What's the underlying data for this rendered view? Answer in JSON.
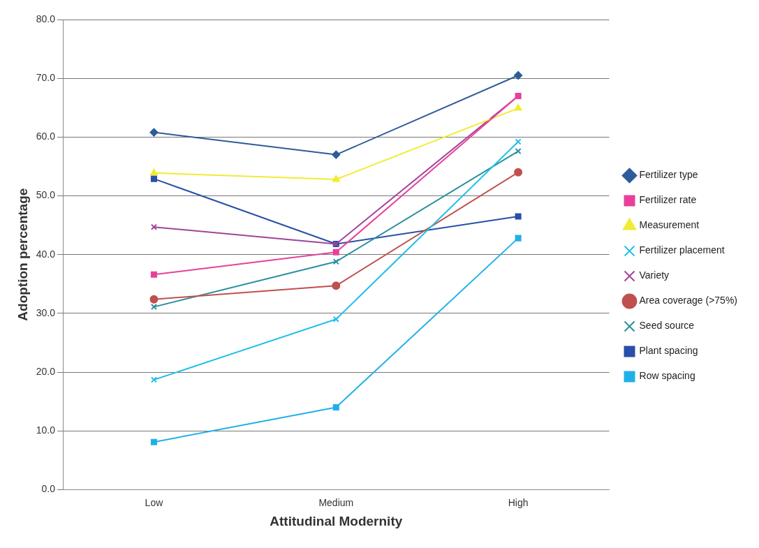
{
  "chart_data": {
    "type": "line",
    "xlabel": "Attitudinal Modernity",
    "ylabel": "Adoption percentage",
    "categories": [
      "Low",
      "Medium",
      "High"
    ],
    "series": [
      {
        "name": "Fertilizer type",
        "color": "#2e5c9a",
        "marker": "diamond",
        "values": [
          60.8,
          57.0,
          70.5
        ]
      },
      {
        "name": "Fertilizer rate",
        "color": "#e8409a",
        "marker": "square",
        "values": [
          36.6,
          40.4,
          67.0
        ]
      },
      {
        "name": "Measurement",
        "color": "#f0ec30",
        "marker": "triangle",
        "values": [
          53.9,
          52.8,
          64.9
        ]
      },
      {
        "name": "Fertilizer placement",
        "color": "#22c0e8",
        "marker": "cross",
        "values": [
          18.7,
          29.0,
          59.2
        ]
      },
      {
        "name": "Variety",
        "color": "#a0449a",
        "marker": "cross",
        "values": [
          44.7,
          41.8,
          67.0
        ]
      },
      {
        "name": "Area coverage (>75%)",
        "color": "#c0504d",
        "marker": "circle",
        "values": [
          32.4,
          34.7,
          54.0
        ]
      },
      {
        "name": "Seed source",
        "color": "#2a8ea0",
        "marker": "cross",
        "values": [
          31.1,
          38.8,
          57.6
        ]
      },
      {
        "name": "Plant spacing",
        "color": "#2850a8",
        "marker": "square",
        "values": [
          52.9,
          41.8,
          46.5
        ]
      },
      {
        "name": "Row spacing",
        "color": "#20b0e8",
        "marker": "square",
        "values": [
          8.1,
          14.0,
          42.8
        ]
      }
    ],
    "ylim": [
      0,
      80
    ],
    "yticks": [
      {
        "value": 0,
        "label": "0.0"
      },
      {
        "value": 10,
        "label": "10.0"
      },
      {
        "value": 20,
        "label": "20.0"
      },
      {
        "value": 30,
        "label": "30.0"
      },
      {
        "value": 40,
        "label": "40.0"
      },
      {
        "value": 50,
        "label": "50.0"
      },
      {
        "value": 60,
        "label": "60.0"
      },
      {
        "value": 70,
        "label": "70.0"
      },
      {
        "value": 80,
        "label": "80.0"
      }
    ],
    "grid": "y",
    "legend": "right",
    "line_style": "solid"
  }
}
